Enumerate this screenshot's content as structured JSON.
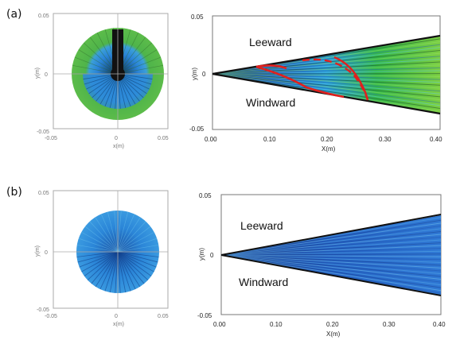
{
  "figure": {
    "panels": [
      {
        "id": "a",
        "label": "(a)",
        "wedge": {
          "xlabel": "X(m)",
          "ylabel": "y(m)",
          "xticks": [
            "0.00",
            "0.10",
            "0.20",
            "0.30",
            "0.40"
          ],
          "yticks": [
            "0.05",
            "0",
            "-0.05"
          ],
          "leeward": "Leeward",
          "windward": "Windward",
          "colors": [
            "#1a1a1a",
            "#1e6fd0",
            "#2aa0e0",
            "#3cbf3c",
            "#8ed34a"
          ]
        },
        "circle": {
          "colors": [
            "#5ab84a",
            "#2a84d8",
            "#58b8ea",
            "#000000"
          ]
        },
        "annotation_color": "#e0201e"
      },
      {
        "id": "b",
        "label": "(b)",
        "wedge": {
          "xlabel": "X(m)",
          "ylabel": "y(m)",
          "xticks": [
            "0.00",
            "0.10",
            "0.20",
            "0.30",
            "0.40"
          ],
          "yticks": [
            "0.05",
            "0",
            "-0.05"
          ],
          "leeward": "Leeward",
          "windward": "Windward",
          "colors": [
            "#1b3f9a",
            "#2a6fd0",
            "#57b7ea"
          ]
        },
        "circle": {
          "colors": [
            "#2a7fd6",
            "#57b7ea",
            "#0f3f8a"
          ]
        }
      }
    ]
  }
}
